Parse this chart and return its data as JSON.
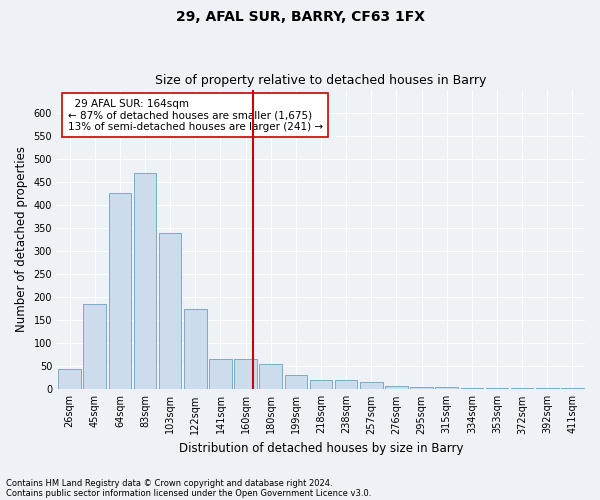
{
  "title": "29, AFAL SUR, BARRY, CF63 1FX",
  "subtitle": "Size of property relative to detached houses in Barry",
  "xlabel": "Distribution of detached houses by size in Barry",
  "ylabel": "Number of detached properties",
  "footer_line1": "Contains HM Land Registry data © Crown copyright and database right 2024.",
  "footer_line2": "Contains public sector information licensed under the Open Government Licence v3.0.",
  "categories": [
    "26sqm",
    "45sqm",
    "64sqm",
    "83sqm",
    "103sqm",
    "122sqm",
    "141sqm",
    "160sqm",
    "180sqm",
    "199sqm",
    "218sqm",
    "238sqm",
    "257sqm",
    "276sqm",
    "295sqm",
    "315sqm",
    "334sqm",
    "353sqm",
    "372sqm",
    "392sqm",
    "411sqm"
  ],
  "values": [
    45,
    185,
    425,
    470,
    340,
    175,
    65,
    65,
    55,
    30,
    20,
    20,
    15,
    8,
    5,
    5,
    3,
    3,
    3,
    3,
    3
  ],
  "bar_color": "#ccdcec",
  "bar_edge_color": "#7aaac8",
  "vline_x": 7.3,
  "vline_color": "#cc0000",
  "annotation_text": "  29 AFAL SUR: 164sqm\n← 87% of detached houses are smaller (1,675)\n13% of semi-detached houses are larger (241) →",
  "annotation_box_color": "#ffffff",
  "annotation_box_edge_color": "#cc0000",
  "ylim": [
    0,
    650
  ],
  "yticks": [
    0,
    50,
    100,
    150,
    200,
    250,
    300,
    350,
    400,
    450,
    500,
    550,
    600
  ],
  "bg_color": "#eef2f7",
  "grid_color": "#ffffff",
  "title_fontsize": 10,
  "subtitle_fontsize": 9,
  "axis_label_fontsize": 8.5,
  "tick_fontsize": 7,
  "annotation_fontsize": 7.5,
  "footer_fontsize": 6
}
